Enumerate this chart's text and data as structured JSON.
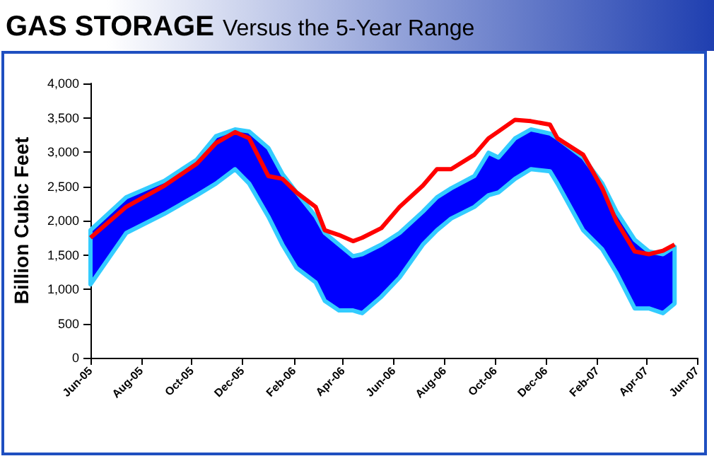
{
  "chart_data": {
    "type": "line",
    "title": "GAS STORAGE",
    "subtitle": "Versus the 5-Year Range",
    "ylabel": "Billion Cubic Feet",
    "x": [
      "2005-06-01",
      "2005-07-14",
      "2005-08-29",
      "2005-10-07",
      "2005-10-30",
      "2005-11-22",
      "2005-12-09",
      "2006-01-01",
      "2006-01-18",
      "2006-02-04",
      "2006-02-27",
      "2006-03-10",
      "2006-03-27",
      "2006-04-13",
      "2006-04-24",
      "2006-05-17",
      "2006-06-08",
      "2006-07-06",
      "2006-07-23",
      "2006-08-09",
      "2006-09-06",
      "2006-09-23",
      "2006-10-05",
      "2006-10-25",
      "2006-11-13",
      "2006-12-06",
      "2006-12-15",
      "2007-01-15",
      "2007-02-07",
      "2007-02-24",
      "2007-03-18",
      "2007-04-04",
      "2007-04-21",
      "2007-05-05"
    ],
    "series": [
      {
        "color": "#ff0000",
        "values": [
          1750,
          2200,
          2510,
          2830,
          3130,
          3290,
          3200,
          2650,
          2610,
          2410,
          2200,
          1860,
          1790,
          1700,
          1750,
          1890,
          2200,
          2510,
          2750,
          2750,
          2960,
          3200,
          3300,
          3470,
          3450,
          3400,
          3200,
          2960,
          2470,
          1990,
          1550,
          1510,
          1560,
          1650
        ],
        "lower": [
          1070,
          1820,
          2100,
          2370,
          2540,
          2750,
          2540,
          2060,
          1650,
          1310,
          1100,
          830,
          690,
          690,
          650,
          890,
          1170,
          1650,
          1860,
          2030,
          2200,
          2370,
          2410,
          2610,
          2750,
          2720,
          2540,
          1860,
          1580,
          1240,
          720,
          720,
          650,
          790
        ],
        "upper": [
          1860,
          2340,
          2580,
          2890,
          3230,
          3330,
          3300,
          3060,
          2680,
          2410,
          2060,
          1820,
          1650,
          1480,
          1510,
          1650,
          1820,
          2130,
          2340,
          2470,
          2650,
          2990,
          2920,
          3200,
          3330,
          3270,
          3200,
          2920,
          2540,
          2130,
          1720,
          1550,
          1510,
          1620
        ]
      }
    ],
    "xlim": [
      "2005-06-01",
      "2007-06-01"
    ],
    "xticks": [
      {
        "value": "2005-06-01",
        "label": "Jun-05"
      },
      {
        "value": "2005-08-01",
        "label": "Aug-05"
      },
      {
        "value": "2005-10-01",
        "label": "Oct-05"
      },
      {
        "value": "2005-12-01",
        "label": "Dec-05"
      },
      {
        "value": "2006-02-01",
        "label": "Feb-06"
      },
      {
        "value": "2006-04-01",
        "label": "Apr-06"
      },
      {
        "value": "2006-06-01",
        "label": "Jun-06"
      },
      {
        "value": "2006-08-01",
        "label": "Aug-06"
      },
      {
        "value": "2006-10-01",
        "label": "Oct-06"
      },
      {
        "value": "2006-12-01",
        "label": "Dec-06"
      },
      {
        "value": "2007-02-01",
        "label": "Feb-07"
      },
      {
        "value": "2007-04-01",
        "label": "Apr-07"
      },
      {
        "value": "2007-06-01",
        "label": "Jun-07"
      }
    ],
    "ylim": [
      0,
      4000
    ],
    "yticks": [
      0,
      500,
      {
        "value": 1000,
        "label": "1,000"
      },
      {
        "value": 1500,
        "label": "1,500"
      },
      {
        "value": 2000,
        "label": "2,000"
      },
      {
        "value": 2500,
        "label": "2,500"
      },
      {
        "value": 3000,
        "label": "3,000"
      },
      {
        "value": 3500,
        "label": "3,500"
      },
      {
        "value": 4000,
        "label": "4,000"
      }
    ],
    "grid": false
  }
}
